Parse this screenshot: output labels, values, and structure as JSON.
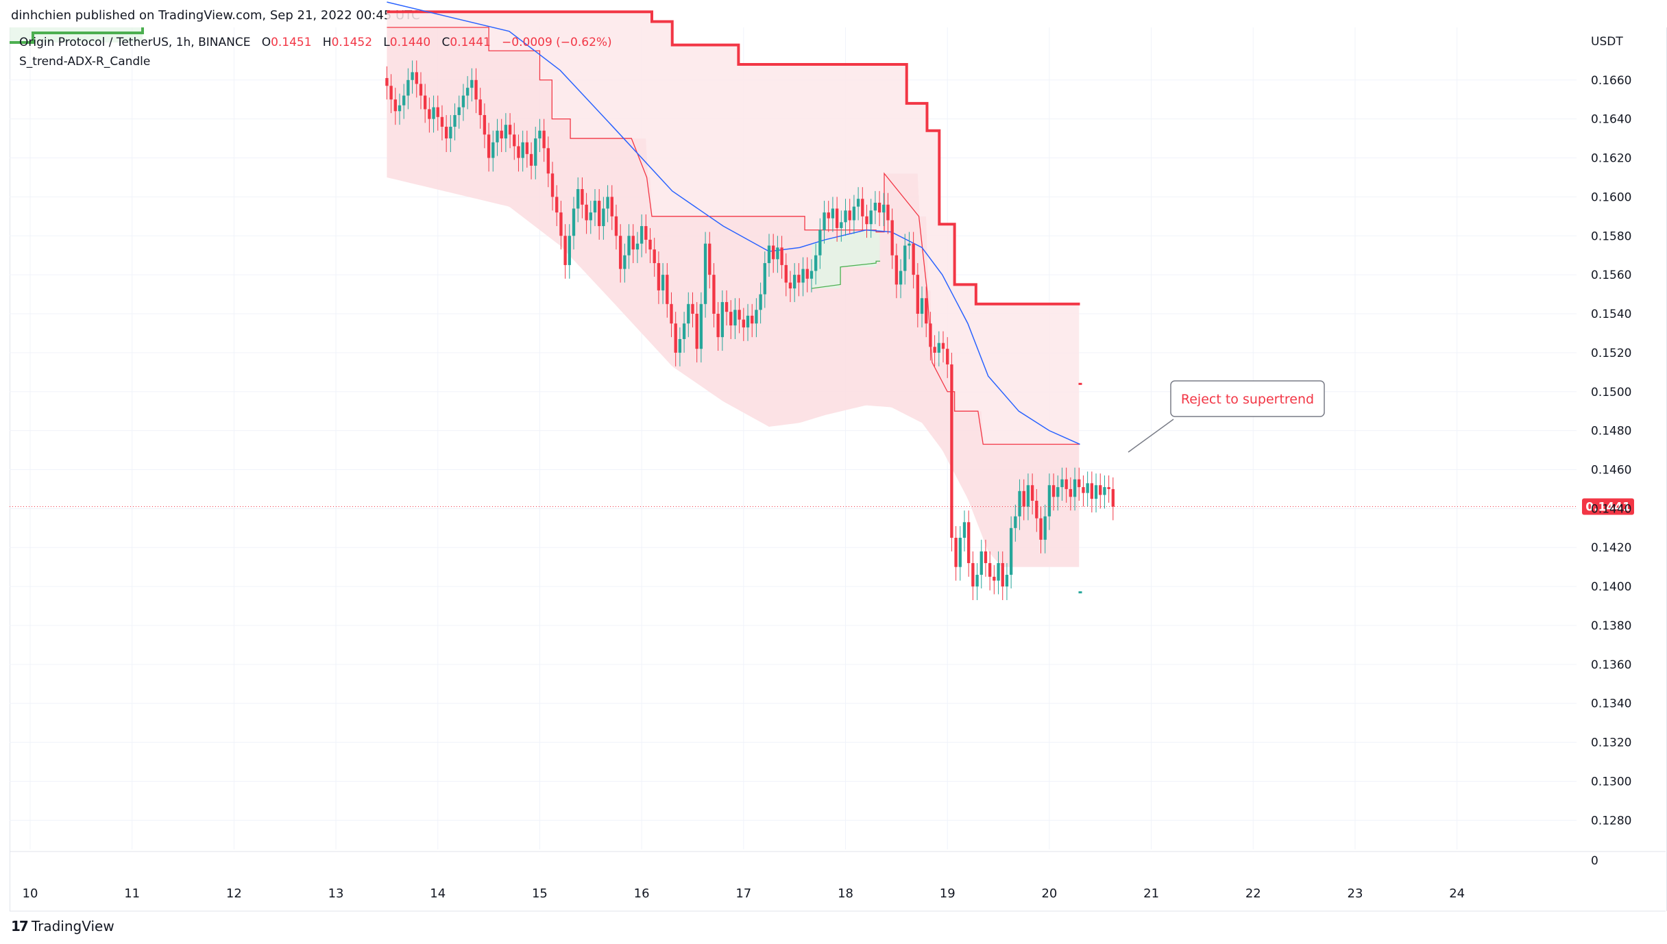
{
  "publisher_line": "dinhchien published on TradingView.com, Sep 21, 2022 00:45 UTC",
  "legend": {
    "symbol": "Origin Protocol / TetherUS, 1h, BINANCE",
    "o_label": "O",
    "o": "0.1451",
    "h_label": "H",
    "h": "0.1452",
    "l_label": "L",
    "l": "0.1440",
    "c_label": "C",
    "c": "0.1441",
    "change": "−0.0009 (−0.62%)",
    "indicator": "S_trend-ADX-R_Candle"
  },
  "annotation": "Reject to supertrend",
  "brand": "TradingView",
  "brand_logo": "17",
  "colors": {
    "up": "#26a69a",
    "down": "#f23645",
    "ema": "#2962ff",
    "supertrend": "#f23645",
    "supertrend_up": "#4caf50",
    "fill_down": "#fcdde0",
    "fill_up": "#e3f4e6"
  },
  "chart_data": {
    "type": "candlestick",
    "axis_currency": "USDT",
    "ylim": [
      0.1265,
      0.1687
    ],
    "y_ticks": [
      "0.1660",
      "0.1640",
      "0.1620",
      "0.1600",
      "0.1580",
      "0.1560",
      "0.1540",
      "0.1520",
      "0.1500",
      "0.1480",
      "0.1460",
      "0.1440",
      "0.1420",
      "0.1400",
      "0.1380",
      "0.1360",
      "0.1340",
      "0.1320",
      "0.1300",
      "0.1280"
    ],
    "y_extra_tick": "0",
    "x_ticks": [
      "10",
      "11",
      "12",
      "13",
      "14",
      "15",
      "16",
      "17",
      "18",
      "19",
      "20",
      "21",
      "22",
      "23",
      "24"
    ],
    "xlim": [
      10.0,
      24.5
    ],
    "last_price": "0.1441",
    "candles_start_day": 13.5,
    "candles_per_day": 24,
    "closes": [
      0.1657,
      0.165,
      0.1644,
      0.1647,
      0.1652,
      0.166,
      0.1664,
      0.1658,
      0.1652,
      0.1645,
      0.164,
      0.1646,
      0.1641,
      0.1636,
      0.163,
      0.1636,
      0.1642,
      0.1646,
      0.1652,
      0.1656,
      0.166,
      0.165,
      0.1642,
      0.1632,
      0.162,
      0.1628,
      0.1634,
      0.163,
      0.1637,
      0.1632,
      0.1626,
      0.162,
      0.1628,
      0.1622,
      0.1616,
      0.163,
      0.1634,
      0.1625,
      0.1612,
      0.16,
      0.1592,
      0.158,
      0.1565,
      0.158,
      0.1594,
      0.1604,
      0.1596,
      0.1588,
      0.1592,
      0.1598,
      0.1585,
      0.1594,
      0.16,
      0.159,
      0.158,
      0.1563,
      0.157,
      0.158,
      0.1573,
      0.1576,
      0.1585,
      0.1578,
      0.1573,
      0.1566,
      0.1552,
      0.156,
      0.1545,
      0.1535,
      0.152,
      0.1527,
      0.1535,
      0.1545,
      0.154,
      0.1522,
      0.1545,
      0.1576,
      0.156,
      0.154,
      0.1528,
      0.1546,
      0.1541,
      0.1534,
      0.1542,
      0.1537,
      0.1533,
      0.1539,
      0.1535,
      0.1542,
      0.155,
      0.1566,
      0.1575,
      0.1568,
      0.1574,
      0.1565,
      0.1556,
      0.1553,
      0.156,
      0.1556,
      0.1563,
      0.1558,
      0.1562,
      0.157,
      0.1583,
      0.1592,
      0.1589,
      0.1594,
      0.1584,
      0.1587,
      0.1593,
      0.1588,
      0.1595,
      0.1599,
      0.159,
      0.1586,
      0.1593,
      0.1597,
      0.1592,
      0.1596,
      0.1588,
      0.157,
      0.1555,
      0.1562,
      0.1575,
      0.1576,
      0.156,
      0.154,
      0.1548,
      0.1535,
      0.1523,
      0.152,
      0.1525,
      0.1522,
      0.1514,
      0.1425,
      0.141,
      0.1425,
      0.1433,
      0.1412,
      0.14,
      0.1406,
      0.1418,
      0.1412,
      0.1405,
      0.1403,
      0.1412,
      0.14,
      0.1406,
      0.143,
      0.1436,
      0.1449,
      0.1441,
      0.1452,
      0.1444,
      0.1435,
      0.1424,
      0.1436,
      0.1452,
      0.1446,
      0.1451,
      0.1455,
      0.145,
      0.1446,
      0.1455,
      0.1451,
      0.1448,
      0.1453,
      0.1445,
      0.1452,
      0.1447,
      0.1451,
      0.145,
      0.1441
    ],
    "supertrend_red": [
      [
        13.5,
        0.1695
      ],
      [
        16.1,
        0.1695
      ],
      [
        16.1,
        0.169
      ],
      [
        16.3,
        0.169
      ],
      [
        16.3,
        0.1678
      ],
      [
        16.95,
        0.1678
      ],
      [
        16.95,
        0.1668
      ],
      [
        18.6,
        0.1668
      ],
      [
        18.6,
        0.1648
      ],
      [
        18.8,
        0.1648
      ],
      [
        18.8,
        0.1634
      ],
      [
        18.92,
        0.1634
      ],
      [
        18.92,
        0.1586
      ],
      [
        19.07,
        0.1586
      ],
      [
        19.07,
        0.1555
      ],
      [
        19.28,
        0.1555
      ],
      [
        19.28,
        0.1545
      ],
      [
        20.3,
        0.1545
      ]
    ],
    "supertrend_lower": [
      [
        13.5,
        0.1687
      ],
      [
        14.5,
        0.1687
      ],
      [
        14.5,
        0.1675
      ],
      [
        15.0,
        0.1675
      ],
      [
        15.0,
        0.166
      ],
      [
        15.12,
        0.166
      ],
      [
        15.12,
        0.164
      ],
      [
        15.3,
        0.164
      ],
      [
        15.3,
        0.163
      ],
      [
        15.9,
        0.163
      ],
      [
        16.05,
        0.161
      ],
      [
        16.1,
        0.159
      ],
      [
        17.6,
        0.159
      ],
      [
        17.6,
        0.1583
      ],
      [
        18.3,
        0.1583
      ],
      [
        18.3,
        0.1582
      ],
      [
        18.38,
        0.1582
      ],
      [
        18.38,
        0.1612
      ],
      [
        18.72,
        0.159
      ],
      [
        18.8,
        0.1552
      ],
      [
        18.85,
        0.1515
      ],
      [
        19.0,
        0.15
      ],
      [
        19.07,
        0.15
      ],
      [
        19.07,
        0.149
      ],
      [
        19.3,
        0.149
      ],
      [
        19.35,
        0.1473
      ],
      [
        20.3,
        0.1473
      ]
    ],
    "supertrend_green": [
      [
        17.67,
        0.1553
      ],
      [
        17.95,
        0.1555
      ],
      [
        17.95,
        0.1564
      ],
      [
        18.3,
        0.1566
      ],
      [
        18.3,
        0.1567
      ],
      [
        18.34,
        0.1567
      ]
    ],
    "ema": [
      [
        13.5,
        0.17
      ],
      [
        14.7,
        0.1685
      ],
      [
        15.2,
        0.1665
      ],
      [
        15.7,
        0.1637
      ],
      [
        16.3,
        0.1603
      ],
      [
        16.8,
        0.1585
      ],
      [
        17.25,
        0.1572
      ],
      [
        17.55,
        0.1574
      ],
      [
        17.8,
        0.1578
      ],
      [
        18.2,
        0.1583
      ],
      [
        18.45,
        0.1582
      ],
      [
        18.75,
        0.1574
      ],
      [
        18.95,
        0.156
      ],
      [
        19.2,
        0.1535
      ],
      [
        19.4,
        0.1508
      ],
      [
        19.7,
        0.149
      ],
      [
        20.0,
        0.148
      ],
      [
        20.3,
        0.1473
      ]
    ],
    "markers": [
      [
        20.3,
        0.1504,
        "down"
      ],
      [
        20.3,
        0.1397,
        "up"
      ]
    ]
  }
}
